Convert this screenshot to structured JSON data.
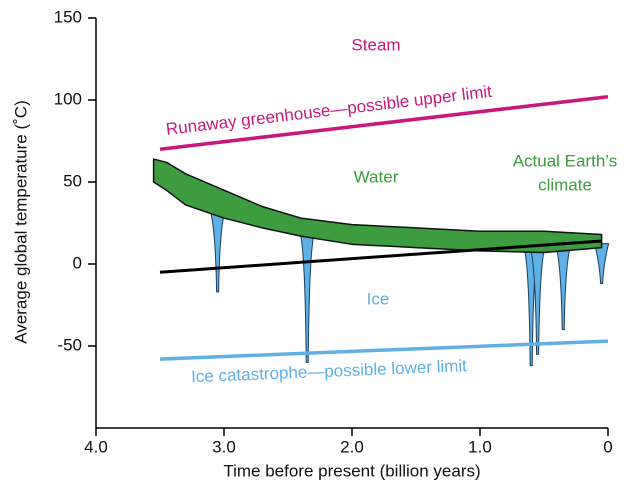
{
  "chart_data": {
    "type": "line",
    "xlabel": "Time before present (billion years)",
    "ylabel": "Average global temperature (˚C)",
    "xlim": [
      4,
      0
    ],
    "ylim": [
      -100,
      150
    ],
    "xticks": [
      {
        "value": 4,
        "label": "4.0"
      },
      {
        "value": 3,
        "label": "3.0"
      },
      {
        "value": 2,
        "label": "2.0"
      },
      {
        "value": 1,
        "label": "1.0"
      },
      0
    ],
    "yticks": [
      150,
      100,
      50,
      0,
      -50
    ],
    "series": [
      {
        "name": "Runaway greenhouse—possible upper limit",
        "color": "#c8177d",
        "x": [
          3.5,
          0
        ],
        "values": [
          70,
          102
        ]
      },
      {
        "name": "Ice catastrophe—possible lower limit",
        "color": "#5fb0e4",
        "x": [
          3.5,
          0
        ],
        "values": [
          -58,
          -47
        ]
      }
    ],
    "trend": {
      "color": "#000000",
      "x": [
        3.5,
        0.05
      ],
      "values": [
        -5,
        14
      ]
    },
    "climate": {
      "color": "#3d9c3f",
      "x": [
        3.55,
        3.45,
        3.3,
        3.0,
        2.7,
        2.4,
        2.0,
        1.5,
        1.0,
        0.5,
        0.05
      ],
      "upper": [
        64,
        62,
        55,
        45,
        35,
        28,
        24,
        22,
        20,
        20,
        18
      ],
      "lower": [
        50,
        45,
        36,
        28,
        22,
        17,
        12,
        10,
        8,
        7,
        10
      ]
    },
    "ice": {
      "color": "#5fb0e4",
      "x": [
        3.05,
        2.35,
        0.6,
        0.55,
        0.35,
        0.05
      ],
      "values": [
        -17,
        -60,
        -62,
        -55,
        -40,
        -12
      ]
    },
    "annotations": [
      {
        "text": "Steam",
        "color": "#c8177d"
      },
      {
        "text": "Water",
        "color": "#3d9c3f"
      },
      {
        "text": "Ice",
        "color": "#5fb0e4"
      },
      {
        "text": "Actual Earth’s",
        "color": "#3d9c3f"
      },
      {
        "text": "climate",
        "color": "#3d9c3f"
      }
    ]
  }
}
